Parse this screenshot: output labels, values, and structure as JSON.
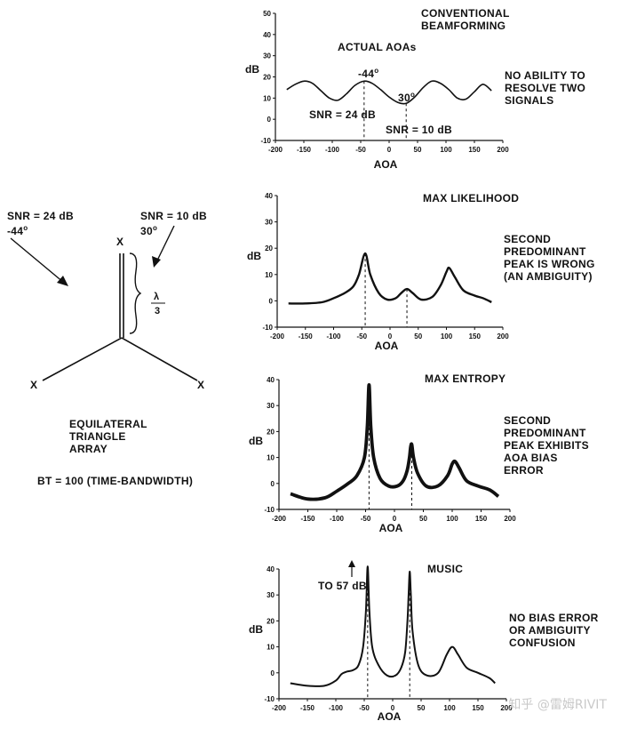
{
  "array": {
    "signal_left_snr": "SNR =  24 dB",
    "signal_left_angle": "-44",
    "signal_right_snr": "SNR = 10 dB",
    "signal_right_angle": "30",
    "degree_mark": "o",
    "spacing_num": "λ",
    "spacing_den": "3",
    "element_marker": "X",
    "title_line1": "EQUILATERAL",
    "title_line2": "TRIANGLE",
    "title_line3": "ARRAY",
    "bt_label": "BT =  100 (TIME-BANDWIDTH)"
  },
  "annotations": {
    "actual_aoas": "ACTUAL AOAs",
    "peak_left": "-44",
    "peak_right": "30",
    "degree_mark": "o",
    "snr24": "SNR =  24 dB",
    "snr10": "SNR =  10 dB",
    "to57": "TO 57 dB"
  },
  "notes": {
    "n1": [
      "NO ABILITY TO",
      "RESOLVE TWO",
      "SIGNALS"
    ],
    "n2": [
      "SECOND",
      "PREDOMINANT",
      "PEAK IS WRONG",
      "(AN AMBIGUITY)"
    ],
    "n3": [
      "SECOND",
      "PREDOMINANT",
      "PEAK EXHIBITS",
      "AOA BIAS",
      "ERROR"
    ],
    "n4": [
      "NO BIAS ERROR",
      "OR AMBIGUITY",
      "CONFUSION"
    ]
  },
  "watermark": "知乎 @雷姆RIVIT",
  "chart_data": [
    {
      "type": "line",
      "title": "CONVENTIONAL BEAMFORMING",
      "title_lines": [
        "CONVENTIONAL",
        "BEAMFORMING"
      ],
      "xlabel": "AOA",
      "ylabel": "dB",
      "xlim": [
        -200,
        200
      ],
      "ylim": [
        -10,
        50
      ],
      "xticks": [
        -200,
        -150,
        -100,
        -50,
        0,
        50,
        100,
        150,
        200
      ],
      "yticks": [
        -10,
        0,
        10,
        20,
        30,
        40,
        50
      ],
      "markers": [
        -44,
        30
      ],
      "x": [
        -180,
        -165,
        -150,
        -135,
        -120,
        -105,
        -90,
        -75,
        -60,
        -44,
        -30,
        -15,
        0,
        15,
        30,
        45,
        60,
        75,
        90,
        105,
        120,
        135,
        150,
        165,
        180
      ],
      "y": [
        14,
        16.5,
        18,
        17,
        13.5,
        10,
        9,
        12,
        16,
        18,
        17,
        14,
        10.5,
        8,
        7.5,
        10.5,
        15,
        18,
        17,
        14,
        10,
        9.5,
        13,
        16.5,
        13.5
      ]
    },
    {
      "type": "line",
      "title": "MAX LIKELIHOOD",
      "xlabel": "AOA",
      "ylabel": "dB",
      "xlim": [
        -200,
        200
      ],
      "ylim": [
        -10,
        40
      ],
      "xticks": [
        -200,
        -150,
        -100,
        -50,
        0,
        50,
        100,
        150,
        200
      ],
      "yticks": [
        -10,
        0,
        10,
        20,
        30,
        40
      ],
      "markers": [
        -44,
        30
      ],
      "x": [
        -180,
        -150,
        -120,
        -100,
        -80,
        -65,
        -55,
        -44,
        -35,
        -20,
        -5,
        10,
        20,
        30,
        40,
        55,
        75,
        90,
        100,
        105,
        115,
        130,
        150,
        165,
        180
      ],
      "y": [
        -1,
        -1,
        -0.5,
        1,
        3,
        5.5,
        10,
        18,
        10,
        3,
        0.5,
        1,
        3,
        4.5,
        3,
        0.5,
        1.5,
        6,
        11,
        12.5,
        9,
        4,
        2,
        1,
        -0.5
      ]
    },
    {
      "type": "line",
      "title": "MAX ENTROPY",
      "xlabel": "AOA",
      "ylabel": "dB",
      "xlim": [
        -200,
        200
      ],
      "ylim": [
        -10,
        40
      ],
      "xticks": [
        -200,
        -150,
        -100,
        -50,
        0,
        50,
        100,
        150,
        200
      ],
      "yticks": [
        -10,
        0,
        10,
        20,
        30,
        40
      ],
      "markers": [
        -44,
        30
      ],
      "x": [
        -180,
        -150,
        -120,
        -100,
        -80,
        -65,
        -52,
        -47,
        -44,
        -41,
        -36,
        -25,
        -10,
        5,
        15,
        22,
        26,
        28,
        30,
        33,
        40,
        55,
        75,
        92,
        100,
        105,
        112,
        125,
        145,
        165,
        180
      ],
      "y": [
        -4,
        -6,
        -5.5,
        -3,
        0,
        3,
        10,
        22,
        38,
        22,
        10,
        2,
        -1,
        -1,
        1,
        5,
        10,
        14,
        15,
        10,
        4,
        -1,
        -1,
        3,
        7.5,
        8.5,
        6,
        1,
        -1,
        -2.5,
        -5
      ]
    },
    {
      "type": "line",
      "title": "MUSIC",
      "xlabel": "AOA",
      "ylabel": "dB",
      "xlim": [
        -200,
        200
      ],
      "ylim": [
        -10,
        40
      ],
      "xticks": [
        -200,
        -150,
        -100,
        -50,
        0,
        50,
        100,
        150,
        200
      ],
      "yticks": [
        -10,
        0,
        10,
        20,
        30,
        40
      ],
      "markers": [
        -44,
        30
      ],
      "x": [
        -180,
        -150,
        -120,
        -100,
        -90,
        -80,
        -70,
        -60,
        -52,
        -47,
        -44,
        -41,
        -36,
        -25,
        -10,
        5,
        15,
        22,
        26,
        28,
        30,
        32,
        35,
        45,
        60,
        80,
        95,
        105,
        115,
        130,
        150,
        170,
        180
      ],
      "y": [
        -4,
        -5,
        -5,
        -3,
        -0.5,
        0.5,
        1,
        3,
        10,
        24,
        41,
        24,
        10,
        3,
        -1,
        -1,
        2,
        8,
        20,
        30,
        39,
        30,
        16,
        3,
        -1,
        0,
        7,
        10,
        7,
        2,
        0,
        -2,
        -4
      ]
    }
  ]
}
